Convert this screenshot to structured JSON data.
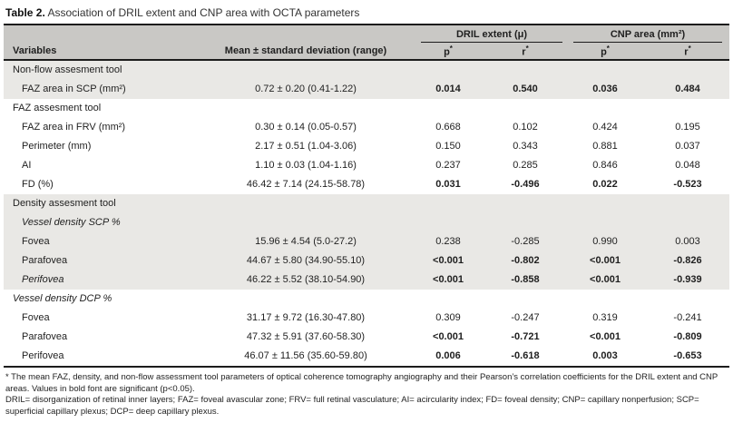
{
  "title": {
    "prefix": "Table 2.",
    "text": " Association of DRIL extent and CNP area with OCTA parameters"
  },
  "colors": {
    "header_bg": "#c9c8c5",
    "band_bg": "#e9e8e5",
    "rule": "#1c1c1c",
    "text": "#1f1f1f"
  },
  "table": {
    "group_headers": [
      {
        "label": "DRIL extent (μ)"
      },
      {
        "label": "CNP area (mm²)"
      }
    ],
    "columns": {
      "variables": "Variables",
      "mean": "Mean ± standard deviation (range)",
      "sub": [
        {
          "letter": "p",
          "sup": "*"
        },
        {
          "letter": "r",
          "sup": "*"
        },
        {
          "letter": "p",
          "sup": "*"
        },
        {
          "letter": "r",
          "sup": "*"
        }
      ]
    },
    "rows": [
      {
        "label": "Non-flow assesment tool",
        "indent": 0,
        "italic": false,
        "shaded": true
      },
      {
        "label": "FAZ area in SCP (mm²)",
        "indent": 1,
        "italic": false,
        "shaded": true,
        "bold": true,
        "mean": "0.72 ± 0.20 (0.41-1.22)",
        "values": [
          "0.014",
          "0.540",
          "0.036",
          "0.484"
        ]
      },
      {
        "label": "FAZ assesment tool",
        "indent": 0,
        "italic": false,
        "shaded": false
      },
      {
        "label": "FAZ area in FRV (mm²)",
        "indent": 1,
        "italic": false,
        "shaded": false,
        "bold": false,
        "mean": "0.30 ± 0.14 (0.05-0.57)",
        "values": [
          "0.668",
          "0.102",
          "0.424",
          "0.195"
        ]
      },
      {
        "label": "Perimeter (mm)",
        "indent": 1,
        "italic": false,
        "shaded": false,
        "bold": false,
        "mean": "2.17 ± 0.51 (1.04-3.06)",
        "values": [
          "0.150",
          "0.343",
          "0.881",
          "0.037"
        ]
      },
      {
        "label": "AI",
        "indent": 1,
        "italic": false,
        "shaded": false,
        "bold": false,
        "mean": "1.10 ± 0.03 (1.04-1.16)",
        "values": [
          "0.237",
          "0.285",
          "0.846",
          "0.048"
        ]
      },
      {
        "label": "FD (%)",
        "indent": 1,
        "italic": false,
        "shaded": false,
        "bold": true,
        "mean": "46.42 ± 7.14 (24.15-58.78)",
        "values": [
          "0.031",
          "-0.496",
          "0.022",
          "-0.523"
        ]
      },
      {
        "label": "Density assesment tool",
        "indent": 0,
        "italic": false,
        "shaded": true
      },
      {
        "label": "Vessel density SCP %",
        "indent": 1,
        "italic": true,
        "shaded": true
      },
      {
        "label": "Fovea",
        "indent": 1,
        "italic": false,
        "shaded": true,
        "bold": false,
        "mean": "15.96 ± 4.54 (5.0-27.2)",
        "values": [
          "0.238",
          "-0.285",
          "0.990",
          "0.003"
        ]
      },
      {
        "label": "Parafovea",
        "indent": 1,
        "italic": false,
        "shaded": true,
        "bold": true,
        "mean": "44.67 ± 5.80 (34.90-55.10)",
        "values": [
          "<0.001",
          "-0.802",
          "<0.001",
          "-0.826"
        ]
      },
      {
        "label": "Perifovea",
        "indent": 1,
        "italic": true,
        "shaded": true,
        "bold": true,
        "mean": "46.22 ± 5.52 (38.10-54.90)",
        "values": [
          "<0.001",
          "-0.858",
          "<0.001",
          "-0.939"
        ]
      },
      {
        "label": "Vessel density DCP %",
        "indent": 0,
        "italic": true,
        "shaded": false
      },
      {
        "label": "Fovea",
        "indent": 1,
        "italic": false,
        "shaded": false,
        "bold": false,
        "mean": "31.17 ± 9.72 (16.30-47.80)",
        "values": [
          "0.309",
          "-0.247",
          "0.319",
          "-0.241"
        ]
      },
      {
        "label": "Parafovea",
        "indent": 1,
        "italic": false,
        "shaded": false,
        "bold": true,
        "mean": "47.32 ± 5.91 (37.60-58.30)",
        "values": [
          "<0.001",
          "-0.721",
          "<0.001",
          "-0.809"
        ]
      },
      {
        "label": "Perifovea",
        "indent": 1,
        "italic": false,
        "shaded": false,
        "bold": true,
        "mean": "46.07 ± 11.56 (35.60-59.80)",
        "values": [
          "0.006",
          "-0.618",
          "0.003",
          "-0.653"
        ]
      }
    ]
  },
  "footnotes": {
    "line1": "* The mean FAZ, density, and non-flow assessment tool parameters of optical coherence tomography angiography and their Pearson’s correlation coefficients for the DRIL extent and CNP areas. Values in bold font are significant (p<0.05).",
    "line2": "DRIL= disorganization of retinal inner layers; FAZ= foveal avascular zone; FRV= full retinal vasculature; AI= acircularity index; FD= foveal density; CNP= capillary nonperfusion; SCP= superficial capillary plexus; DCP= deep capillary plexus."
  }
}
